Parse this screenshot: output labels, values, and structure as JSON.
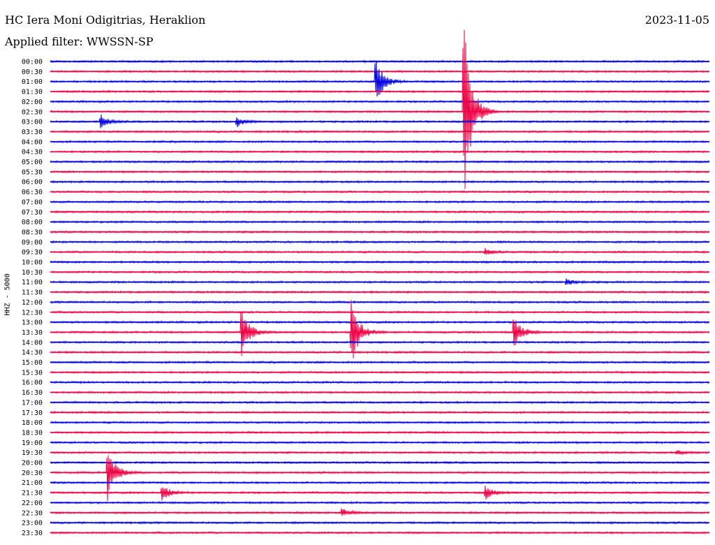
{
  "header": {
    "title": "HC Iera Moni Odigitrias, Heraklion",
    "date": "2023-11-05",
    "filter": "Applied filter: WWSSN-SP"
  },
  "chart_data": {
    "type": "line",
    "title": "HC Iera Moni Odigitrias, Heraklion",
    "subtitle": "Applied filter: WWSSN-SP",
    "ylabel": "HHZ - 5000",
    "xlabel": "",
    "row_labels": [
      "00:00",
      "00:30",
      "01:00",
      "01:30",
      "02:00",
      "02:30",
      "03:00",
      "03:30",
      "04:00",
      "04:30",
      "05:00",
      "05:30",
      "06:00",
      "06:30",
      "07:00",
      "07:30",
      "08:00",
      "08:30",
      "09:00",
      "09:30",
      "10:00",
      "10:30",
      "11:00",
      "11:30",
      "12:00",
      "12:30",
      "13:00",
      "13:30",
      "14:00",
      "14:30",
      "15:00",
      "15:30",
      "16:00",
      "16:30",
      "17:00",
      "17:30",
      "18:00",
      "18:30",
      "19:00",
      "19:30",
      "20:00",
      "20:30",
      "21:00",
      "21:30",
      "22:00",
      "22:30",
      "23:00",
      "23:30"
    ],
    "series_colors": [
      "#0000e0",
      "#ee0044"
    ],
    "grid": false,
    "events": [
      {
        "row": "01:00",
        "minute": 14.8,
        "amplitude": 2.4
      },
      {
        "row": "02:30",
        "minute": 18.8,
        "amplitude": 11.0
      },
      {
        "row": "03:00",
        "minute": 2.3,
        "amplitude": 0.7
      },
      {
        "row": "03:00",
        "minute": 8.5,
        "amplitude": 0.5
      },
      {
        "row": "11:00",
        "minute": 23.5,
        "amplitude": 0.35
      },
      {
        "row": "13:30",
        "minute": 8.7,
        "amplitude": 2.6
      },
      {
        "row": "13:30",
        "minute": 13.7,
        "amplitude": 3.8
      },
      {
        "row": "13:30",
        "minute": 21.1,
        "amplitude": 1.6
      },
      {
        "row": "20:30",
        "minute": 2.6,
        "amplitude": 2.8
      },
      {
        "row": "21:30",
        "minute": 5.1,
        "amplitude": 0.8
      },
      {
        "row": "21:30",
        "minute": 19.8,
        "amplitude": 0.7
      },
      {
        "row": "22:30",
        "minute": 13.3,
        "amplitude": 0.4
      },
      {
        "row": "09:30",
        "minute": 19.8,
        "amplitude": 0.35
      },
      {
        "row": "19:30",
        "minute": 28.5,
        "amplitude": 0.2
      }
    ],
    "xlim": [
      0,
      30
    ]
  }
}
